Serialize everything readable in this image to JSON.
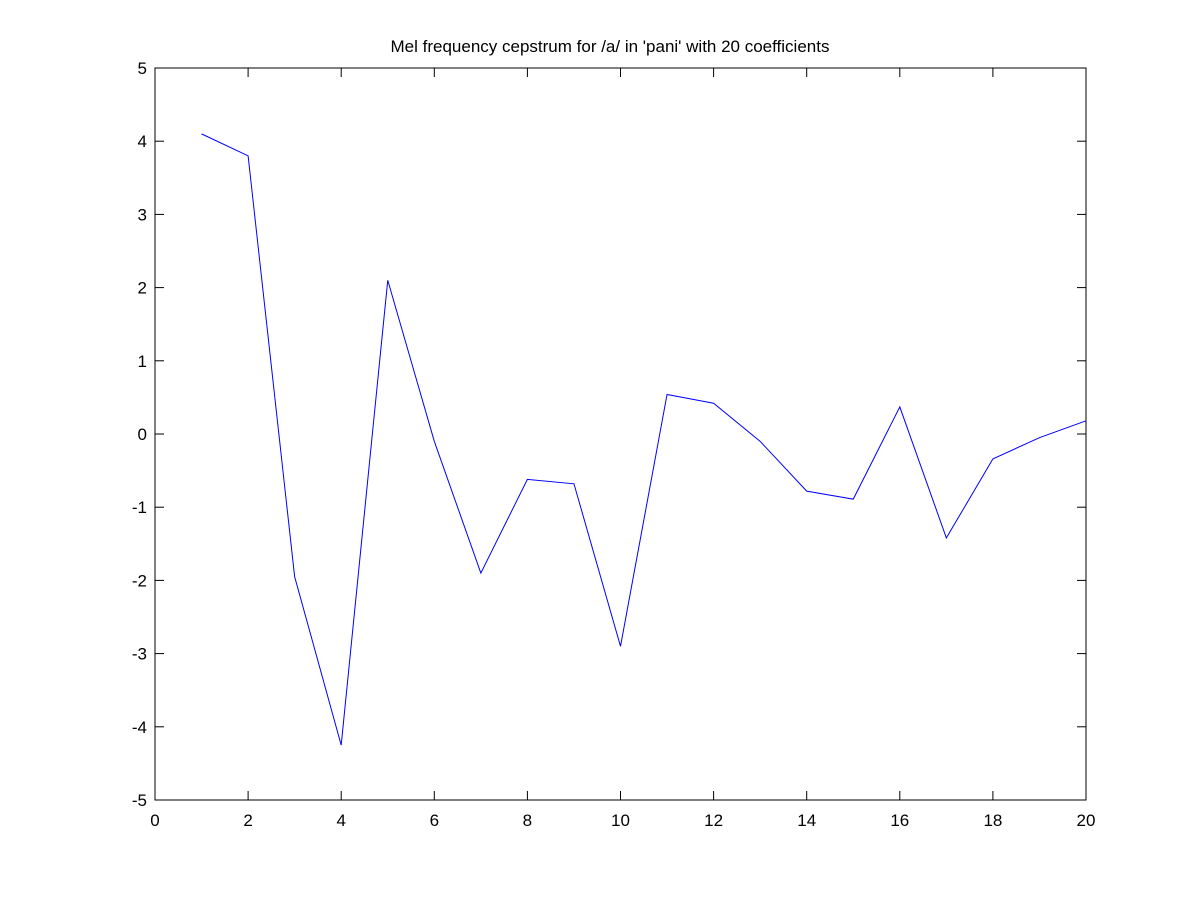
{
  "chart_data": {
    "type": "line",
    "title": "Mel frequency cepstrum for /a/ in 'pani' with 20 coefficients",
    "xlabel": "",
    "ylabel": "",
    "xlim": [
      0,
      20
    ],
    "ylim": [
      -5,
      5
    ],
    "xticks": [
      0,
      2,
      4,
      6,
      8,
      10,
      12,
      14,
      16,
      18,
      20
    ],
    "yticks": [
      -5,
      -4,
      -3,
      -2,
      -1,
      0,
      1,
      2,
      3,
      4,
      5
    ],
    "grid": false,
    "series": [
      {
        "color": "#0000ff",
        "x": [
          1,
          2,
          3,
          4,
          5,
          6,
          7,
          8,
          9,
          10,
          11,
          12,
          13,
          14,
          15,
          16,
          17,
          18,
          19,
          20
        ],
        "y": [
          4.1,
          3.8,
          -1.95,
          -4.25,
          2.1,
          -0.1,
          -1.9,
          -0.62,
          -0.68,
          -2.9,
          0.54,
          0.42,
          -0.1,
          -0.78,
          -0.89,
          0.37,
          -1.42,
          -0.34,
          -0.05,
          0.18
        ]
      }
    ]
  }
}
